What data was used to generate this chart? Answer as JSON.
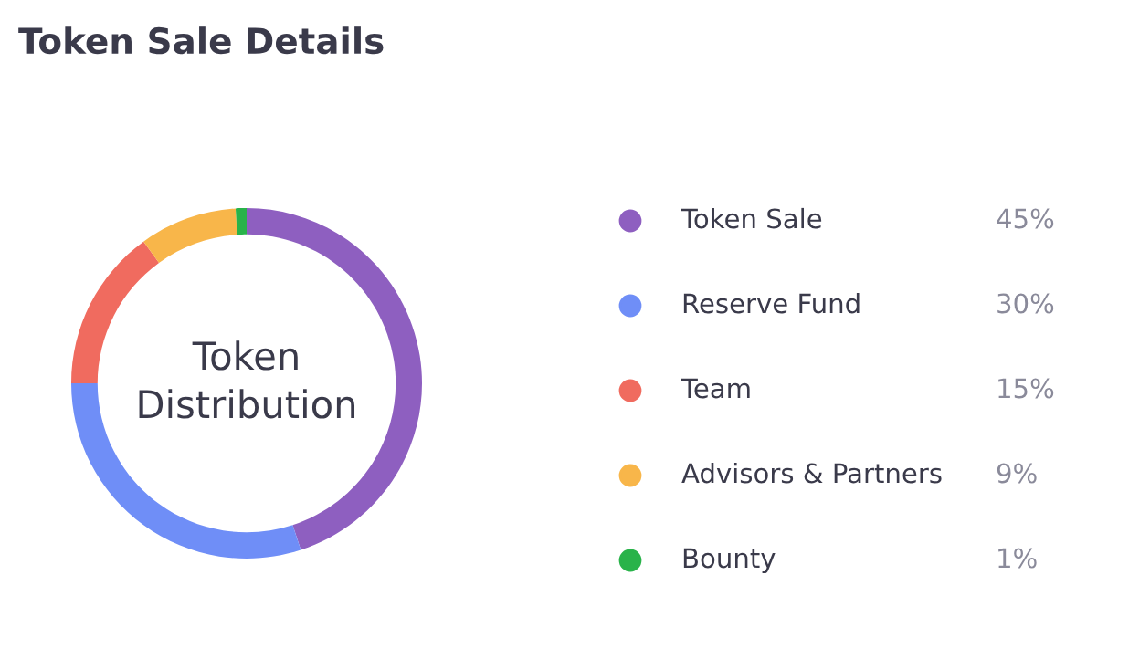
{
  "chart_data": {
    "type": "donut",
    "title": "Token Sale Details",
    "categories": [
      "Token Sale",
      "Reserve Fund",
      "Team",
      "Advisors & Partners",
      "Bounty"
    ],
    "values": [
      45,
      30,
      15,
      9,
      1
    ],
    "colors": [
      "#8e5fc0",
      "#6f8ef7",
      "#f06b5f",
      "#f8b64a",
      "#29b34a"
    ],
    "value_labels": [
      "45%",
      "30%",
      "15%",
      "9%",
      "1%"
    ],
    "annotations": [
      "Token Distribution"
    ],
    "legend": "right"
  }
}
